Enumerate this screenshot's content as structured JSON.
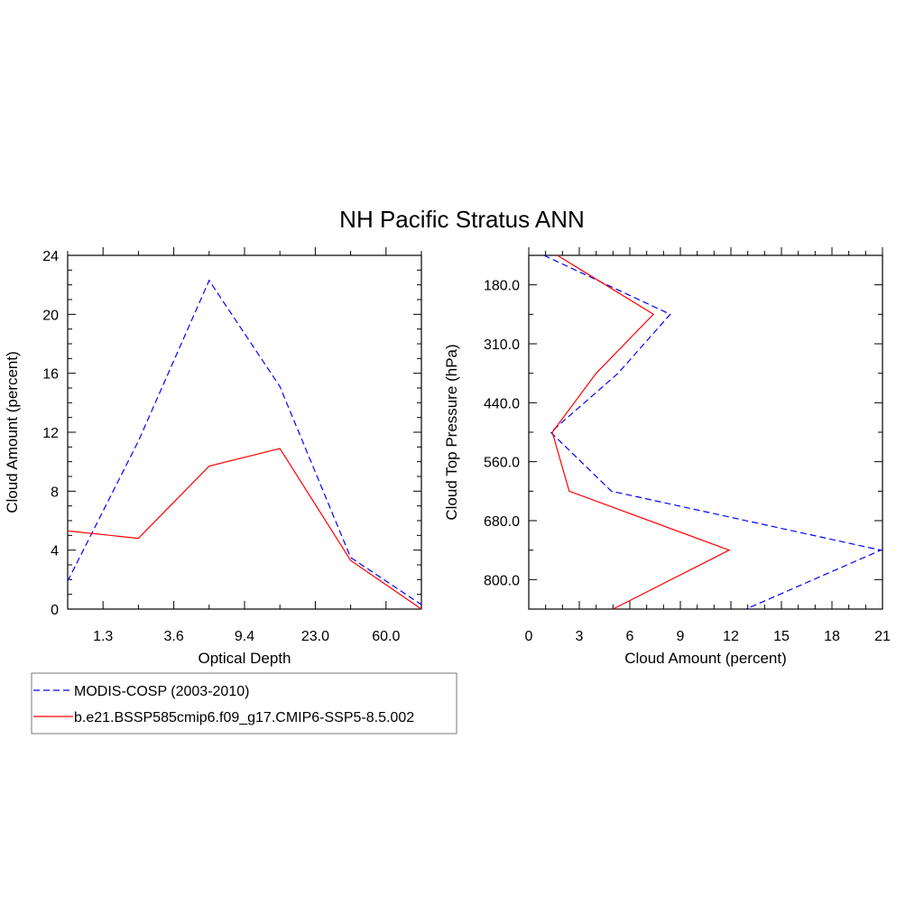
{
  "title": "NH Pacific Stratus ANN",
  "legend": [
    {
      "label": "MODIS-COSP (2003-2010)",
      "color": "#0000ff",
      "dash": "dashed"
    },
    {
      "label": "b.e21.BSSP585cmip6.f09_g17.CMIP6-SSP5-8.5.002",
      "color": "#ff0000",
      "dash": "solid"
    }
  ],
  "chart_data": [
    {
      "type": "line",
      "xlabel": "Optical Depth",
      "ylabel": "Cloud Amount (percent)",
      "categories": [
        "",
        "1.3",
        "",
        "3.6",
        "",
        "9.4",
        "",
        "23.0",
        "",
        "60.0",
        ""
      ],
      "ylim": [
        0,
        24
      ],
      "yticks": [
        "0",
        "4",
        "8",
        "12",
        "16",
        "20",
        "24"
      ],
      "series": [
        {
          "name": "MODIS-COSP (2003-2010)",
          "color": "#0000ff",
          "dash": "dashed",
          "values": [
            1.9,
            null,
            11.4,
            null,
            22.3,
            null,
            15.1,
            null,
            3.5,
            null,
            0.3
          ]
        },
        {
          "name": "b.e21.BSSP585cmip6.f09_g17.CMIP6-SSP5-8.5.002",
          "color": "#ff0000",
          "dash": "solid",
          "values": [
            5.3,
            null,
            4.8,
            null,
            9.7,
            null,
            10.9,
            null,
            3.3,
            null,
            0.0
          ]
        }
      ]
    },
    {
      "type": "line",
      "orientation": "horizontal",
      "xlabel": "Cloud Amount (percent)",
      "ylabel": "Cloud Top Pressure (hPa)",
      "xlim": [
        0,
        21
      ],
      "xticks": [
        "0",
        "3",
        "6",
        "9",
        "12",
        "15",
        "18",
        "21"
      ],
      "categories": [
        "",
        "180.0",
        "",
        "310.0",
        "",
        "440.0",
        "",
        "560.0",
        "",
        "680.0",
        "",
        "800.0",
        ""
      ],
      "series": [
        {
          "name": "MODIS-COSP (2003-2010)",
          "color": "#0000ff",
          "dash": "dashed",
          "values": [
            0.9,
            null,
            8.4,
            null,
            5.3,
            null,
            1.3,
            null,
            4.9,
            null,
            20.9,
            null,
            12.9
          ]
        },
        {
          "name": "b.e21.BSSP585cmip6.f09_g17.CMIP6-SSP5-8.5.002",
          "color": "#ff0000",
          "dash": "solid",
          "values": [
            1.7,
            null,
            7.4,
            null,
            4.0,
            null,
            1.4,
            null,
            2.4,
            null,
            11.9,
            null,
            5.0
          ]
        }
      ]
    }
  ]
}
